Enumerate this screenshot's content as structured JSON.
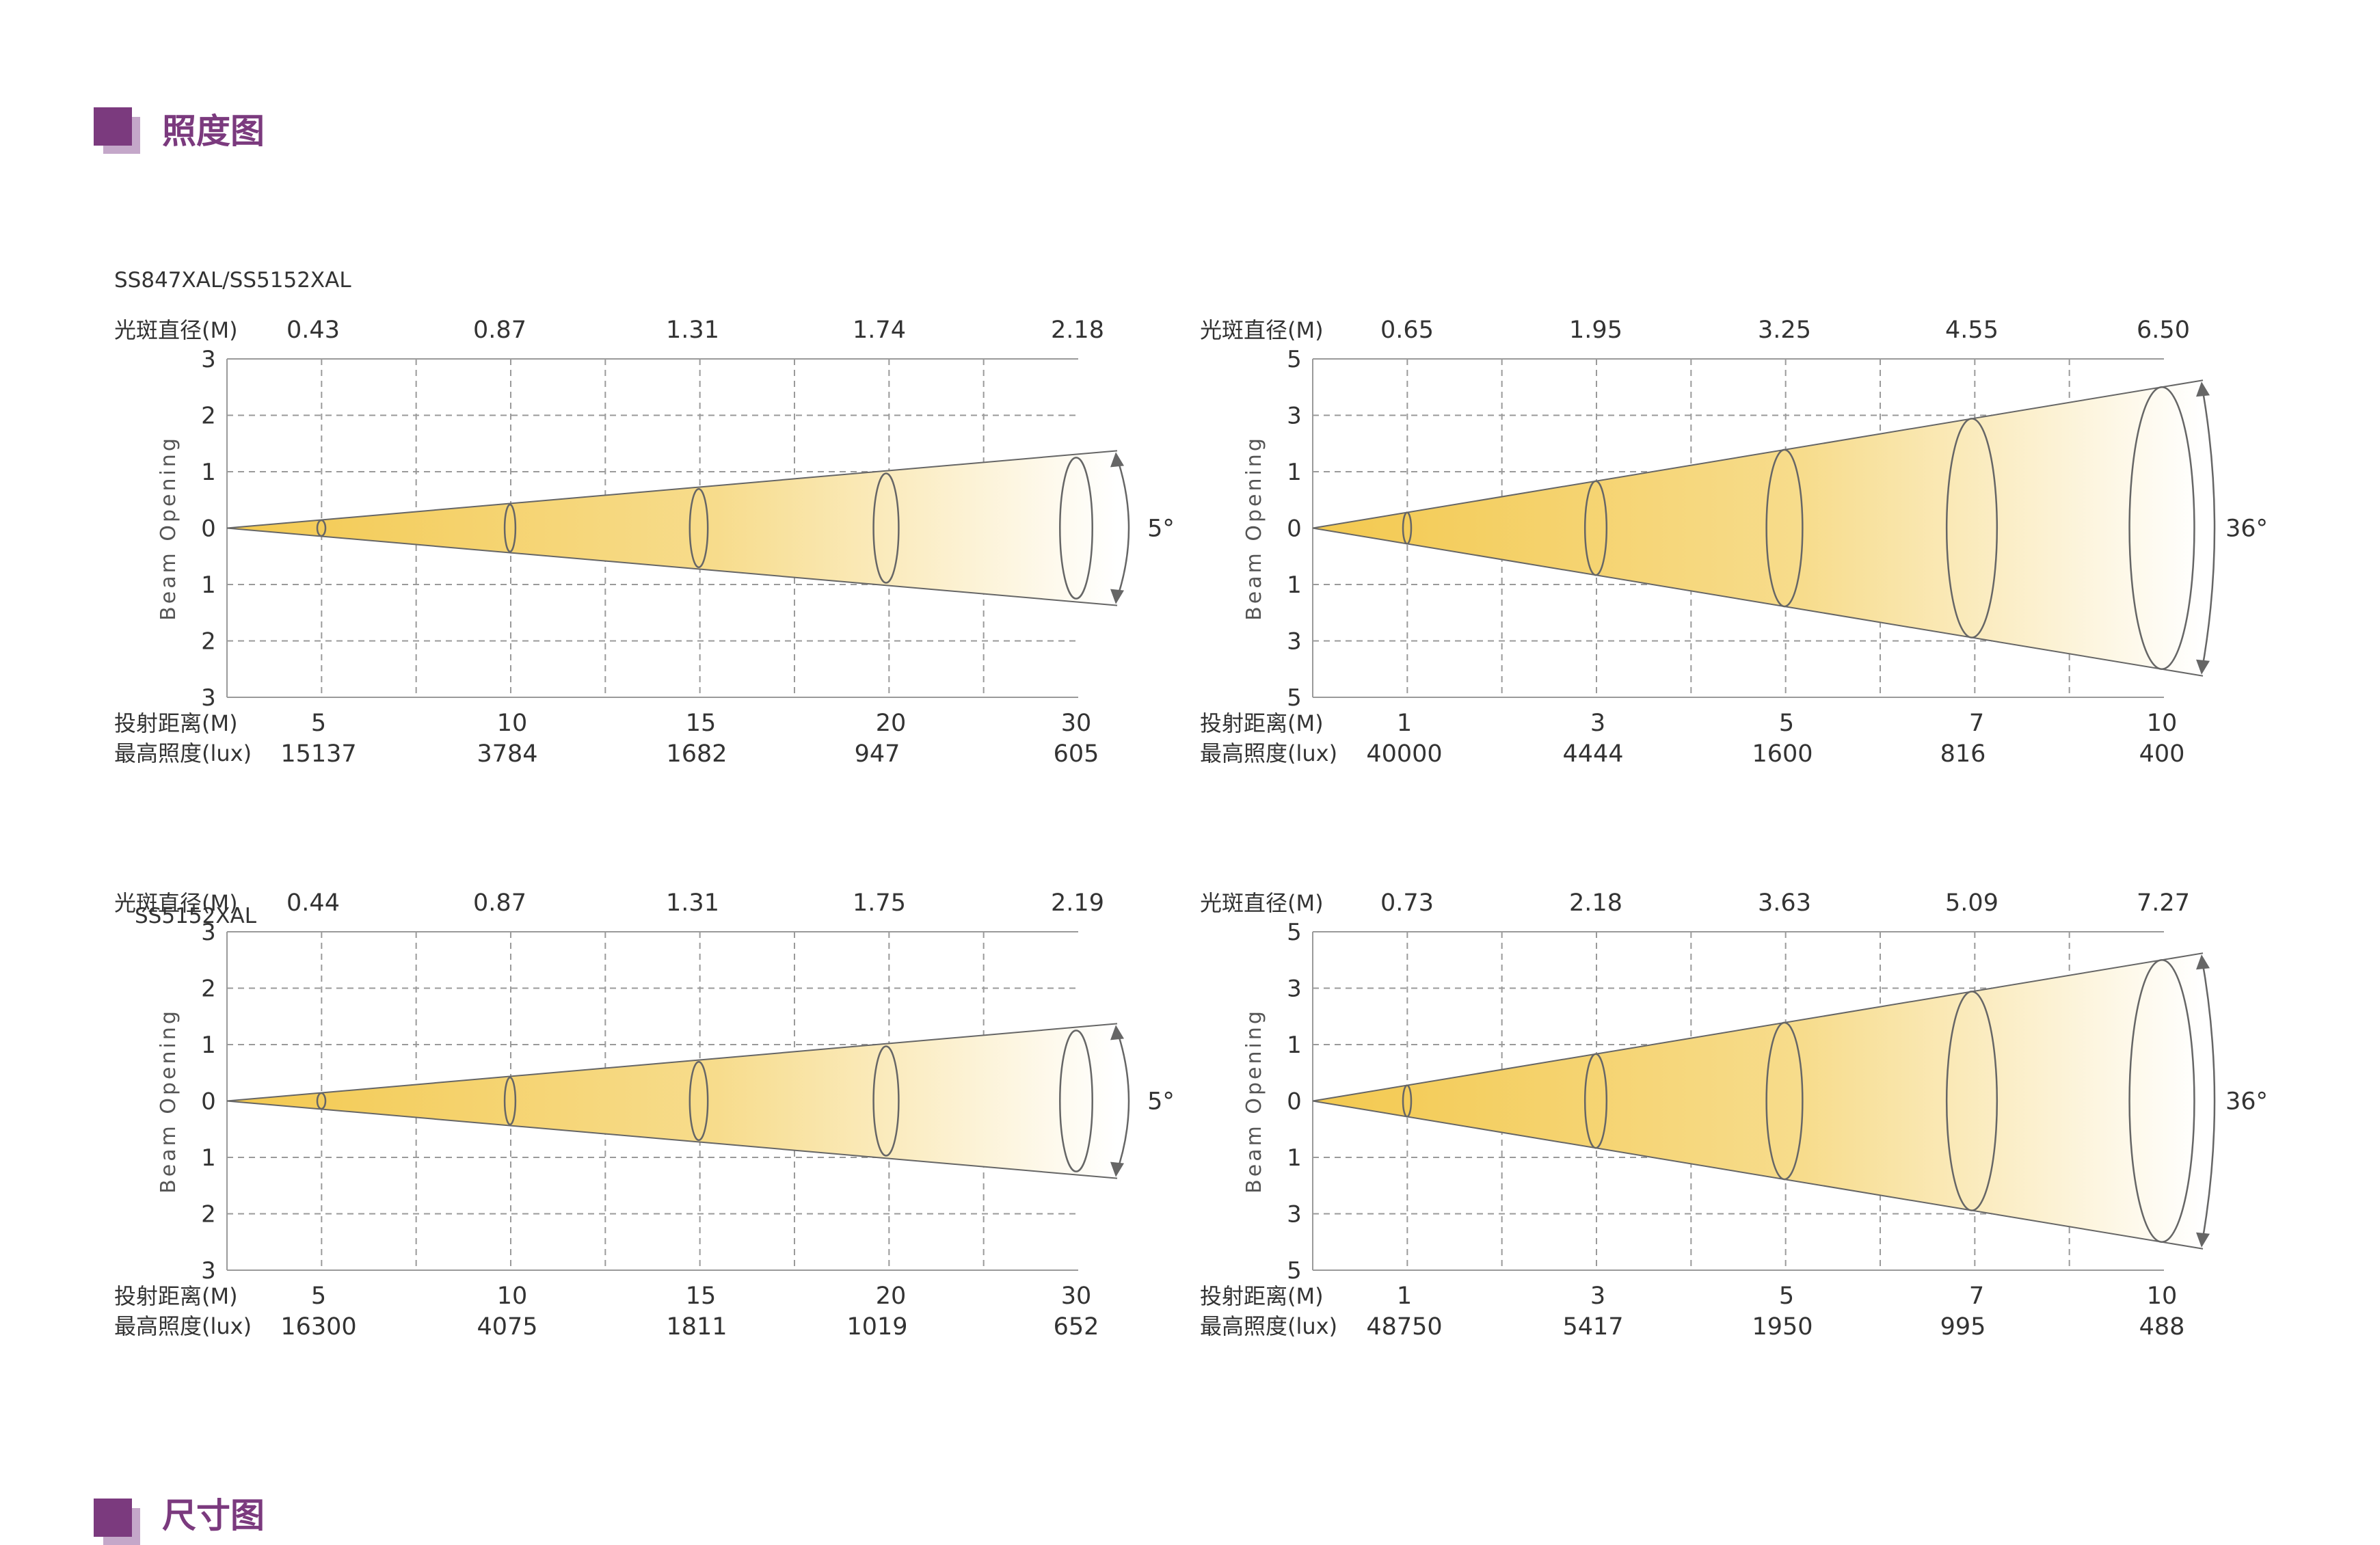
{
  "section_title": "照度图",
  "next_section_title": "尺寸图",
  "labels": {
    "models_top": "SS847XAL/SS5152XAL",
    "models_bottom": "SS5152XAL",
    "diameter": "光斑直径(M)",
    "distance": "投射距离(M)",
    "illuminance": "最高照度(lux)",
    "y_axis": "Beam Opening"
  },
  "colors": {
    "accent": "#7b3a7e",
    "accent_light": "#c4a7c9",
    "beam_start": "#f3c94f",
    "beam_end": "#ffffff",
    "grid": "#9a9a9a",
    "outline": "#666666"
  },
  "diagrams": [
    {
      "id": "a",
      "angle": "5°",
      "y_ticks": [
        "3",
        "2",
        "1",
        "0",
        "1",
        "2",
        "3"
      ],
      "y_max": 3,
      "max_distance_m": 30,
      "beam_half_opening_at_max": 1.25,
      "diameters": [
        "0.43",
        "0.87",
        "1.31",
        "1.74",
        "2.18"
      ],
      "distances": [
        "5",
        "10",
        "15",
        "20",
        "30"
      ],
      "illuminance": [
        "15137",
        "3784",
        "1682",
        "947",
        "605"
      ]
    },
    {
      "id": "b",
      "angle": "36°",
      "y_ticks": [
        "5",
        "3",
        "1",
        "0",
        "1",
        "3",
        "5"
      ],
      "y_max": 3,
      "max_distance_m": 10,
      "beam_half_opening_at_max": 2.5,
      "diameters": [
        "0.65",
        "1.95",
        "3.25",
        "4.55",
        "6.50"
      ],
      "distances": [
        "1",
        "3",
        "5",
        "7",
        "10"
      ],
      "illuminance": [
        "40000",
        "4444",
        "1600",
        "816",
        "400"
      ]
    },
    {
      "id": "c",
      "angle": "5°",
      "y_ticks": [
        "3",
        "2",
        "1",
        "0",
        "1",
        "2",
        "3"
      ],
      "y_max": 3,
      "max_distance_m": 30,
      "beam_half_opening_at_max": 1.25,
      "diameters": [
        "0.44",
        "0.87",
        "1.31",
        "1.75",
        "2.19"
      ],
      "distances": [
        "5",
        "10",
        "15",
        "20",
        "30"
      ],
      "illuminance": [
        "16300",
        "4075",
        "1811",
        "1019",
        "652"
      ]
    },
    {
      "id": "d",
      "angle": "36°",
      "y_ticks": [
        "5",
        "3",
        "1",
        "0",
        "1",
        "3",
        "5"
      ],
      "y_max": 3,
      "max_distance_m": 10,
      "beam_half_opening_at_max": 2.5,
      "diameters": [
        "0.73",
        "2.18",
        "3.63",
        "5.09",
        "7.27"
      ],
      "distances": [
        "1",
        "3",
        "5",
        "7",
        "10"
      ],
      "illuminance": [
        "48750",
        "5417",
        "1950",
        "995",
        "488"
      ]
    }
  ]
}
